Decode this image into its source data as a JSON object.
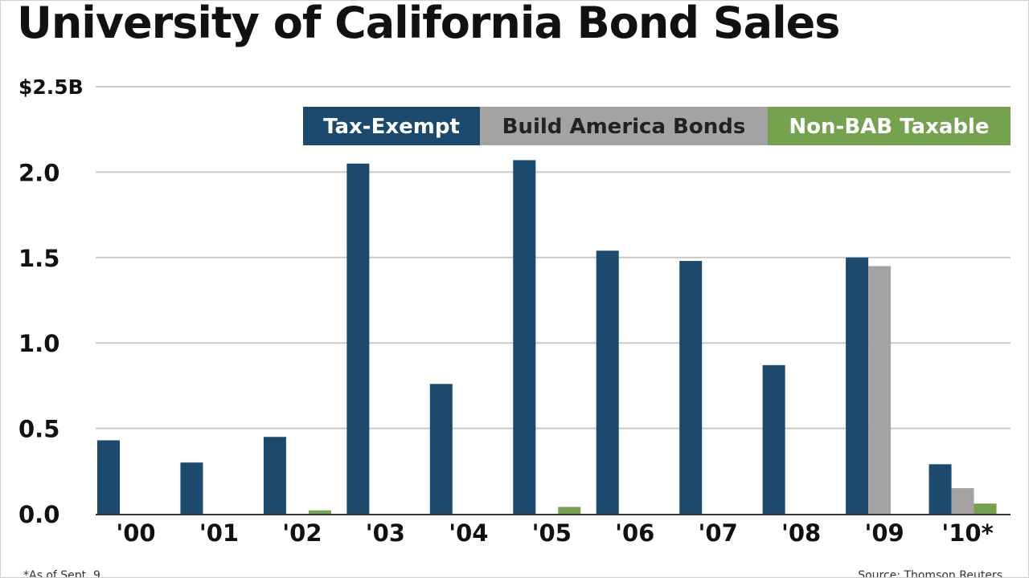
{
  "chart_data": {
    "type": "bar",
    "title": "University of California Bond Sales",
    "categories": [
      "'00",
      "'01",
      "'02",
      "'03",
      "'04",
      "'05",
      "'06",
      "'07",
      "'08",
      "'09",
      "'10*"
    ],
    "series": [
      {
        "name": "Tax-Exempt",
        "color": "#1b4a6e",
        "values": [
          0.43,
          0.3,
          0.45,
          2.05,
          0.76,
          2.07,
          1.54,
          1.48,
          0.87,
          1.5,
          0.29
        ]
      },
      {
        "name": "Build America Bonds",
        "color": "#a3a3a3",
        "values": [
          0,
          0,
          0,
          0,
          0,
          0,
          0,
          0,
          0,
          1.45,
          0.15
        ]
      },
      {
        "name": "Non-BAB Taxable",
        "color": "#75a24e",
        "values": [
          0,
          0,
          0.02,
          0,
          0,
          0.04,
          0,
          0,
          0,
          0,
          0.06
        ]
      }
    ],
    "y_ticks": [
      {
        "value": 0.0,
        "label": "0.0"
      },
      {
        "value": 0.5,
        "label": "0.5"
      },
      {
        "value": 1.0,
        "label": "1.0"
      },
      {
        "value": 1.5,
        "label": "1.5"
      },
      {
        "value": 2.0,
        "label": "2.0"
      },
      {
        "value": 2.5,
        "label": "$2.5B"
      }
    ],
    "ylim": [
      0,
      2.5
    ],
    "grid": true,
    "legend_position": "top-right",
    "footnote": "*As of Sept. 9",
    "source": "Source: Thomson Reuters"
  }
}
